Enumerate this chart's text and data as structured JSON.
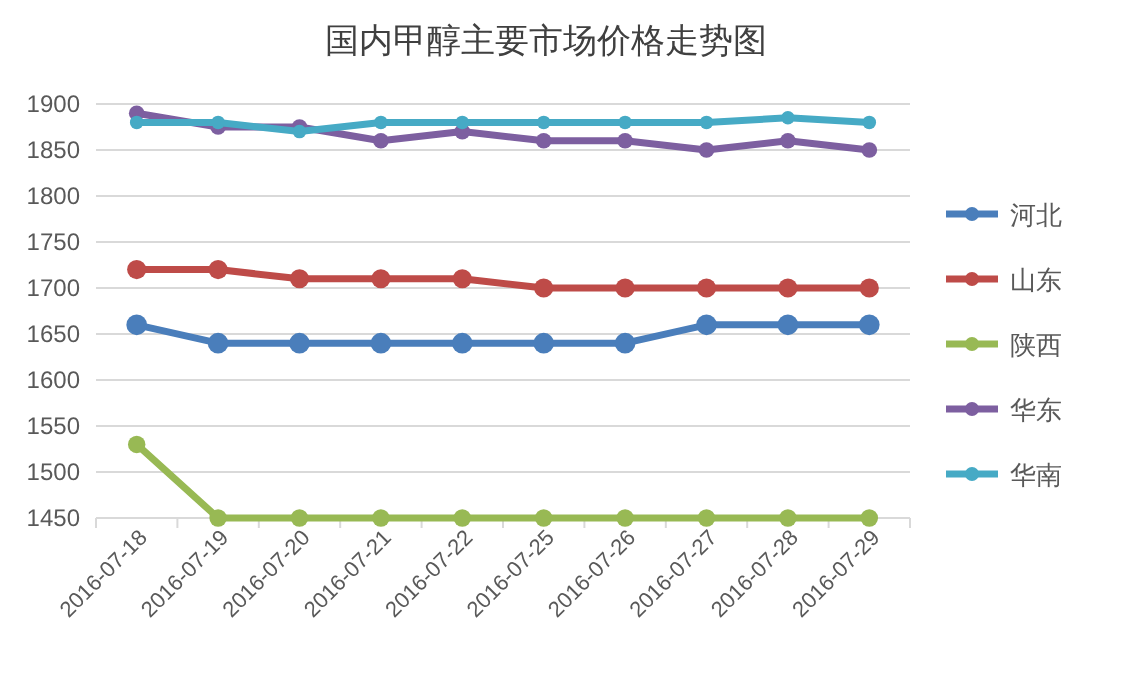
{
  "chart_data": {
    "type": "line",
    "title": "国内甲醇主要市场价格走势图",
    "categories": [
      "2016-07-18",
      "2016-07-19",
      "2016-07-20",
      "2016-07-21",
      "2016-07-22",
      "2016-07-25",
      "2016-07-26",
      "2016-07-27",
      "2016-07-28",
      "2016-07-29"
    ],
    "series": [
      {
        "name": "河北",
        "color": "#4a7ebb",
        "values": [
          1660,
          1640,
          1640,
          1640,
          1640,
          1640,
          1640,
          1660,
          1660,
          1660
        ]
      },
      {
        "name": "山东",
        "color": "#be4b48",
        "values": [
          1720,
          1720,
          1710,
          1710,
          1710,
          1700,
          1700,
          1700,
          1700,
          1700
        ]
      },
      {
        "name": "陕西",
        "color": "#98b954",
        "values": [
          1530,
          1450,
          1450,
          1450,
          1450,
          1450,
          1450,
          1450,
          1450,
          1450
        ]
      },
      {
        "name": "华东",
        "color": "#7d5fa0",
        "values": [
          1890,
          1875,
          1875,
          1860,
          1870,
          1860,
          1860,
          1850,
          1860,
          1850
        ]
      },
      {
        "name": "华南",
        "color": "#46aac5",
        "values": [
          1880,
          1880,
          1870,
          1880,
          1880,
          1880,
          1880,
          1880,
          1885,
          1880
        ]
      }
    ],
    "ylim": [
      1450,
      1900
    ],
    "yticks": [
      1450,
      1500,
      1550,
      1600,
      1650,
      1700,
      1750,
      1800,
      1850,
      1900
    ],
    "grid": "y",
    "legend": "right",
    "marker": "circle",
    "line_style": "solid"
  }
}
